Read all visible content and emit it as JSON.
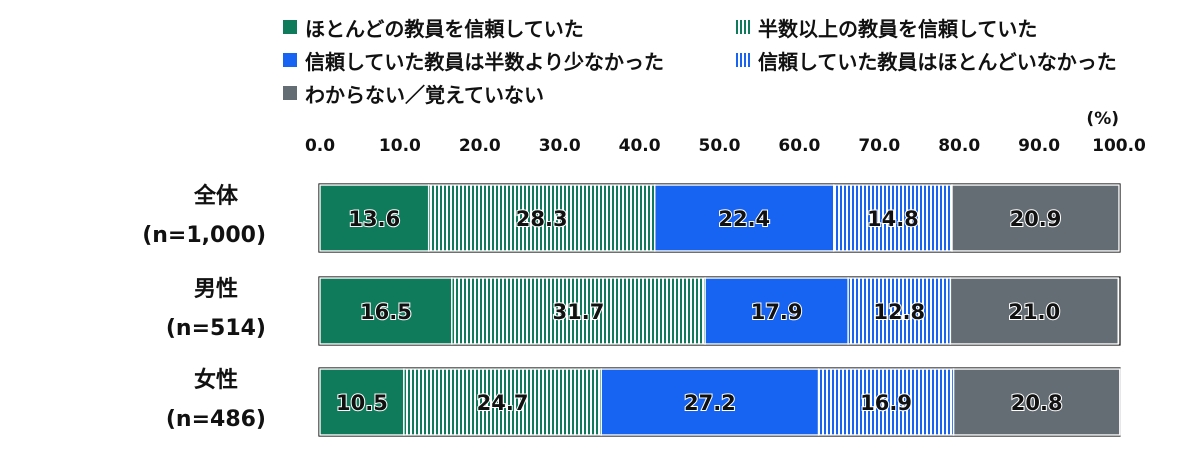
{
  "chart_data": {
    "type": "bar",
    "orientation": "horizontal",
    "stacked": true,
    "unit_label": "(%)",
    "xlim": [
      0,
      100
    ],
    "x_ticks": [
      "0.0",
      "10.0",
      "20.0",
      "30.0",
      "40.0",
      "50.0",
      "60.0",
      "70.0",
      "80.0",
      "90.0",
      "100.0"
    ],
    "categories": [
      {
        "name": "全体",
        "n": "(n=1,000)"
      },
      {
        "name": "男性",
        "n": "(n=514)"
      },
      {
        "name": "女性",
        "n": "(n=486)"
      }
    ],
    "series": [
      {
        "name": "ほとんどの教員を信頼していた",
        "values": [
          13.6,
          16.5,
          10.5
        ],
        "color": "#0f7b5b",
        "pattern": "solid"
      },
      {
        "name": "半数以上の教員を信頼していた",
        "values": [
          28.3,
          31.7,
          24.7
        ],
        "color": "#0f7b5b",
        "pattern": "vertical-stripes"
      },
      {
        "name": "信頼していた教員は半数より少なかった",
        "values": [
          22.4,
          17.9,
          27.2
        ],
        "color": "#1764f2",
        "pattern": "solid"
      },
      {
        "name": "信頼していた教員はほとんどいなかった",
        "values": [
          14.8,
          12.8,
          16.9
        ],
        "color": "#1764f2",
        "pattern": "vertical-stripes"
      },
      {
        "name": "わからない／覚えていない",
        "values": [
          20.9,
          21.0,
          20.8
        ],
        "color": "#646d74",
        "pattern": "solid"
      }
    ],
    "legend_position": "top",
    "grid": false
  }
}
